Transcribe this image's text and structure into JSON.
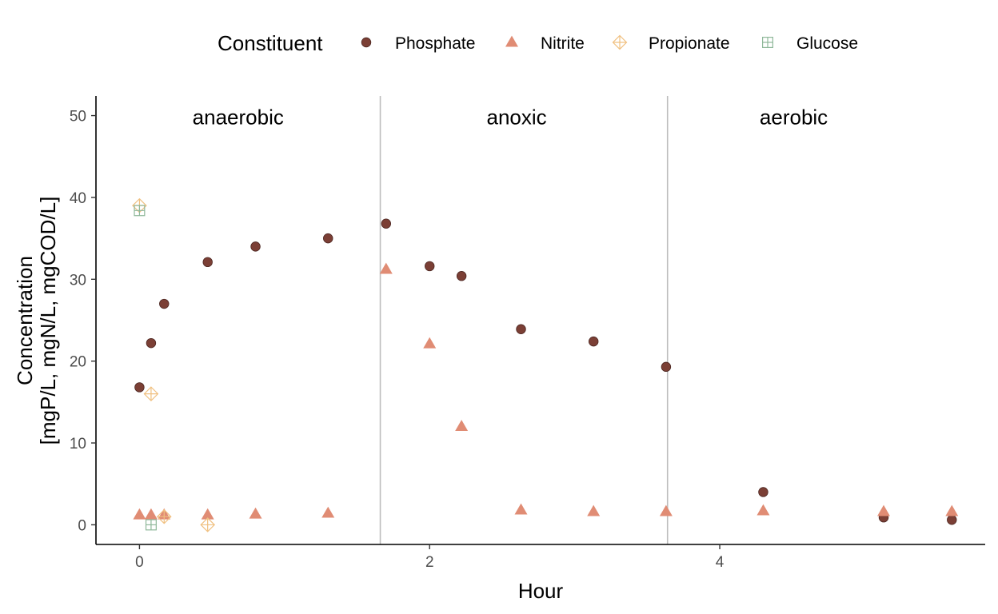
{
  "chart_data": {
    "type": "scatter",
    "xlabel": "Hour",
    "ylabel_lines": [
      "Concentration",
      "[mgP/L, mgN/L, mgCOD/L]"
    ],
    "xlim": [
      -0.3,
      5.83
    ],
    "ylim": [
      -2.4,
      52.4
    ],
    "x_ticks": [
      0,
      2,
      4
    ],
    "y_ticks": [
      0,
      10,
      20,
      30,
      40,
      50
    ],
    "grid": false,
    "legend": {
      "title": "Constituent",
      "position": "top"
    },
    "phase_boundaries": [
      1.66,
      3.64
    ],
    "phases": [
      {
        "label": "anaerobic",
        "x": 0.68
      },
      {
        "label": "anoxic",
        "x": 2.6
      },
      {
        "label": "aerobic",
        "x": 4.51
      }
    ],
    "phase_label_y": 49.8,
    "series": [
      {
        "name": "Phosphate",
        "marker": "circle",
        "color": "#7b3f35",
        "points": [
          [
            0,
            16.8
          ],
          [
            0.08,
            22.2
          ],
          [
            0.17,
            27.0
          ],
          [
            0.47,
            32.1
          ],
          [
            0.8,
            34.0
          ],
          [
            1.3,
            35.0
          ],
          [
            1.7,
            36.8
          ],
          [
            2.0,
            31.6
          ],
          [
            2.22,
            30.4
          ],
          [
            2.63,
            23.9
          ],
          [
            3.13,
            22.4
          ],
          [
            3.63,
            19.3
          ],
          [
            4.3,
            4.0
          ],
          [
            5.13,
            0.9
          ],
          [
            5.6,
            0.6
          ]
        ]
      },
      {
        "name": "Nitrite",
        "marker": "triangle",
        "color": "#e08c74",
        "points": [
          [
            0,
            1.2
          ],
          [
            0.08,
            1.2
          ],
          [
            0.17,
            1.2
          ],
          [
            0.47,
            1.2
          ],
          [
            0.8,
            1.3
          ],
          [
            1.3,
            1.4
          ],
          [
            1.7,
            31.2
          ],
          [
            2.0,
            22.1
          ],
          [
            2.22,
            12.0
          ],
          [
            2.63,
            1.8
          ],
          [
            3.13,
            1.6
          ],
          [
            3.63,
            1.6
          ],
          [
            4.3,
            1.7
          ],
          [
            5.13,
            1.6
          ],
          [
            5.6,
            1.6
          ]
        ]
      },
      {
        "name": "Propionate",
        "marker": "diamond-plus",
        "color": "#f0c080",
        "points": [
          [
            0,
            39.0
          ],
          [
            0.08,
            16.0
          ],
          [
            0.17,
            1.0
          ],
          [
            0.47,
            0.0
          ]
        ]
      },
      {
        "name": "Glucose",
        "marker": "square-plus",
        "color": "#8fb89a",
        "points": [
          [
            0,
            38.4
          ],
          [
            0.08,
            0.0
          ]
        ]
      }
    ]
  }
}
